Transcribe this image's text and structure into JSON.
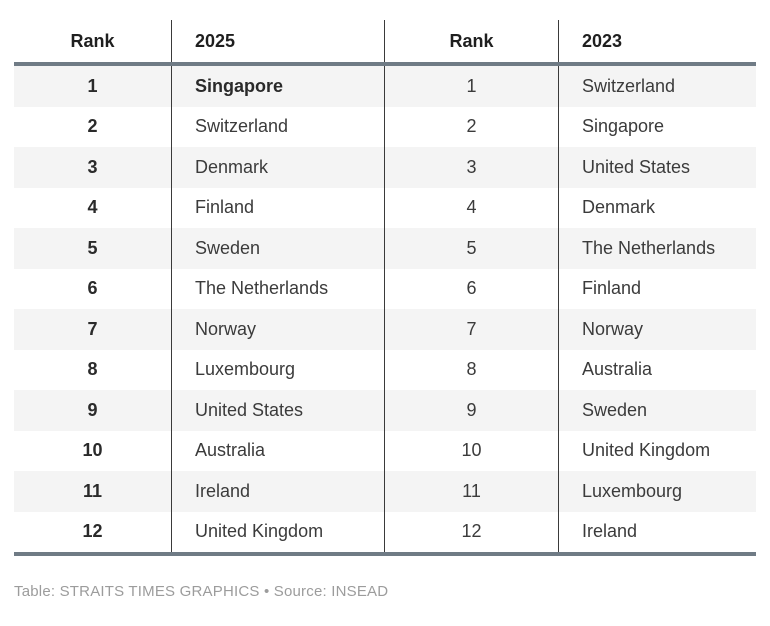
{
  "chart_data": {
    "type": "table",
    "title": "",
    "columns": [
      "Rank",
      "2025",
      "Rank",
      "2023"
    ],
    "rows": [
      [
        "1",
        "Singapore",
        "1",
        "Switzerland"
      ],
      [
        "2",
        "Switzerland",
        "2",
        "Singapore"
      ],
      [
        "3",
        "Denmark",
        "3",
        "United States"
      ],
      [
        "4",
        "Finland",
        "4",
        "Denmark"
      ],
      [
        "5",
        "Sweden",
        "5",
        "The Netherlands"
      ],
      [
        "6",
        "The Netherlands",
        "6",
        "Finland"
      ],
      [
        "7",
        "Norway",
        "7",
        "Norway"
      ],
      [
        "8",
        "Luxembourg",
        "8",
        "Australia"
      ],
      [
        "9",
        "United States",
        "9",
        "Sweden"
      ],
      [
        "10",
        "Australia",
        "10",
        "United Kingdom"
      ],
      [
        "11",
        "Ireland",
        "11",
        "Luxembourg"
      ],
      [
        "12",
        "United Kingdom",
        "12",
        "Ireland"
      ]
    ],
    "layout": {
      "banded_rows": true,
      "emphasized_cell": "row 1, column 2025 (Singapore) bold"
    }
  },
  "footer": {
    "credit": "Table: STRAITS TIMES GRAPHICS • Source: INSEAD"
  },
  "colors": {
    "rule_thick": "#6f7b85",
    "rule_vertical": "#3a3a3a",
    "band": "#f4f4f4",
    "text_dark": "#1f1f1f",
    "text_body": "#3b3b3b",
    "text_footer": "#9c9c9c"
  }
}
